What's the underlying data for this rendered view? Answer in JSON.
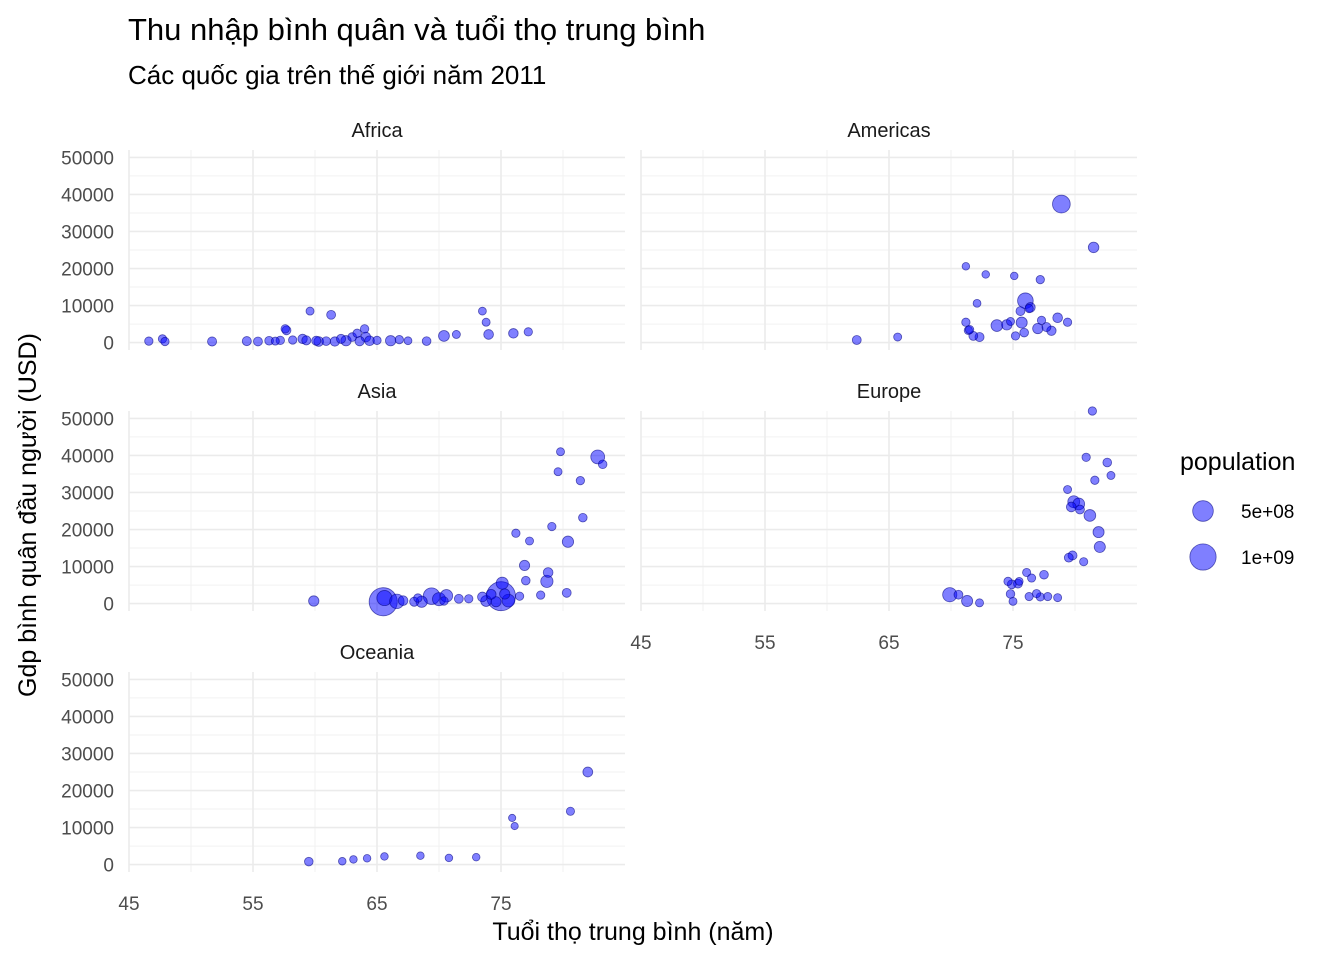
{
  "title": "Thu nhập bình quân và tuổi thọ trung bình",
  "subtitle": "Các quốc gia trên thế giới năm 2011",
  "chart_data": {
    "type": "scatter",
    "title": "Thu nhập bình quân và tuổi thọ trung bình",
    "subtitle": "Các quốc gia trên thế giới năm 2011",
    "xlabel": "Tuổi thọ trung bình (năm)",
    "ylabel": "Gdp bình quân đầu người (USD)",
    "xlim": [
      45,
      85
    ],
    "ylim": [
      -2000,
      52000
    ],
    "x_ticks": [
      45,
      55,
      65,
      75
    ],
    "y_ticks": [
      0,
      10000,
      20000,
      30000,
      40000,
      50000
    ],
    "x_tick_labels": [
      "45",
      "55",
      "65",
      "75"
    ],
    "y_tick_labels": [
      "0",
      "10000",
      "20000",
      "30000",
      "40000",
      "50000"
    ],
    "point_color": "#0000ff",
    "size_legend": {
      "title": "population",
      "entries": [
        {
          "label": "5e+08",
          "value": 500000000
        },
        {
          "label": "1e+09",
          "value": 1000000000
        }
      ]
    },
    "facets": [
      {
        "name": "Africa",
        "points": [
          [
            46.6,
            400,
            5000000.0
          ],
          [
            47.7,
            1000,
            5000000.0
          ],
          [
            47.9,
            300,
            5000000.0
          ],
          [
            51.7,
            300,
            12000000.0
          ],
          [
            54.5,
            400,
            12000000.0
          ],
          [
            55.4,
            300,
            10000000.0
          ],
          [
            56.3,
            500,
            8000000.0
          ],
          [
            56.8,
            400,
            3000000.0
          ],
          [
            57.2,
            600,
            6000000.0
          ],
          [
            57.6,
            3700,
            6000000.0
          ],
          [
            57.7,
            3300,
            10000000.0
          ],
          [
            58.2,
            700,
            5000000.0
          ],
          [
            59.0,
            1000,
            15000000.0
          ],
          [
            59.3,
            600,
            12000000.0
          ],
          [
            59.6,
            8500,
            3000000.0
          ],
          [
            60.1,
            500,
            12000000.0
          ],
          [
            60.3,
            300,
            20000000.0
          ],
          [
            60.9,
            400,
            8000000.0
          ],
          [
            61.3,
            7500,
            10000000.0
          ],
          [
            61.6,
            300,
            15000000.0
          ],
          [
            62.1,
            1000,
            12000000.0
          ],
          [
            62.5,
            500,
            30000000.0
          ],
          [
            63.0,
            1500,
            8000000.0
          ],
          [
            63.4,
            2500,
            6000000.0
          ],
          [
            63.6,
            400,
            15000000.0
          ],
          [
            64.0,
            3700,
            6000000.0
          ],
          [
            64.1,
            1500,
            20000000.0
          ],
          [
            64.4,
            500,
            20000000.0
          ],
          [
            65.0,
            600,
            5000000.0
          ],
          [
            66.1,
            500,
            30000000.0
          ],
          [
            66.8,
            800,
            5000000.0
          ],
          [
            67.5,
            500,
            2000000.0
          ],
          [
            69.0,
            400,
            8000000.0
          ],
          [
            70.4,
            1800,
            40000000.0
          ],
          [
            71.4,
            2200,
            3000000.0
          ],
          [
            73.5,
            8500,
            2000000.0
          ],
          [
            73.8,
            5500,
            3000000.0
          ],
          [
            74.0,
            2200,
            20000000.0
          ],
          [
            76.0,
            2500,
            18000000.0
          ],
          [
            77.2,
            2900,
            5000000.0
          ]
        ]
      },
      {
        "name": "Americas",
        "points": [
          [
            62.4,
            700,
            10000000.0
          ],
          [
            65.7,
            1500,
            3000000.0
          ],
          [
            71.2,
            20600,
            1000000.0
          ],
          [
            71.2,
            5500,
            5000000.0
          ],
          [
            71.4,
            3300,
            5000000.0
          ],
          [
            71.5,
            3500,
            5000000.0
          ],
          [
            71.8,
            1800,
            10000000.0
          ],
          [
            72.1,
            10600,
            2000000.0
          ],
          [
            72.3,
            1500,
            12000000.0
          ],
          [
            72.8,
            18400,
            1000000.0
          ],
          [
            73.7,
            4600,
            60000000.0
          ],
          [
            74.5,
            4800,
            30000000.0
          ],
          [
            74.8,
            5700,
            3000000.0
          ],
          [
            75.1,
            18000,
            1000000.0
          ],
          [
            75.2,
            1800,
            5000000.0
          ],
          [
            75.6,
            8500,
            10000000.0
          ],
          [
            75.7,
            5400,
            45000000.0
          ],
          [
            75.9,
            2700,
            8000000.0
          ],
          [
            76.0,
            11300,
            200000000.0
          ],
          [
            76.3,
            9200,
            5000000.0
          ],
          [
            76.4,
            9500,
            20000000.0
          ],
          [
            77.0,
            3800,
            30000000.0
          ],
          [
            77.2,
            17000,
            5000000.0
          ],
          [
            77.3,
            6000,
            5000000.0
          ],
          [
            77.7,
            4200,
            11000000.0
          ],
          [
            78.1,
            3200,
            15000000.0
          ],
          [
            78.6,
            6700,
            20000000.0
          ],
          [
            78.9,
            37400,
            310000000.0
          ],
          [
            79.4,
            5500,
            5000000.0
          ],
          [
            81.5,
            25700,
            34000000.0
          ]
        ]
      },
      {
        "name": "Asia",
        "points": [
          [
            59.9,
            700,
            30000000.0
          ],
          [
            65.5,
            500,
            1200000000.0
          ],
          [
            65.6,
            1500,
            180000000.0
          ],
          [
            66.6,
            600,
            150000000.0
          ],
          [
            67.1,
            800,
            20000000.0
          ],
          [
            68.0,
            500,
            12000000.0
          ],
          [
            68.3,
            1500,
            6000000.0
          ],
          [
            68.6,
            500,
            50000000.0
          ],
          [
            69.4,
            2000,
            250000000.0
          ],
          [
            70.0,
            1200,
            100000000.0
          ],
          [
            70.4,
            700,
            6000000.0
          ],
          [
            70.6,
            2100,
            80000000.0
          ],
          [
            71.6,
            1300,
            10000000.0
          ],
          [
            72.4,
            1300,
            5000000.0
          ],
          [
            73.5,
            1800,
            20000000.0
          ],
          [
            73.8,
            700,
            40000000.0
          ],
          [
            74.2,
            2500,
            24000000.0
          ],
          [
            74.6,
            500,
            27000000.0
          ],
          [
            75.0,
            2000,
            1300000000.0
          ],
          [
            75.1,
            5500,
            70000000.0
          ],
          [
            75.3,
            2600,
            30000000.0
          ],
          [
            75.6,
            800,
            90000000.0
          ],
          [
            76.2,
            19000,
            5000000.0
          ],
          [
            76.5,
            2000,
            5000000.0
          ],
          [
            76.9,
            10300,
            28000000.0
          ],
          [
            77.0,
            6200,
            7000000.0
          ],
          [
            77.3,
            16900,
            3000000.0
          ],
          [
            78.2,
            2300,
            5000000.0
          ],
          [
            78.7,
            6000,
            75000000.0
          ],
          [
            78.8,
            8400,
            20000000.0
          ],
          [
            79.1,
            20800,
            5000000.0
          ],
          [
            79.6,
            35600,
            3000000.0
          ],
          [
            79.8,
            41000,
            3000000.0
          ],
          [
            80.3,
            2900,
            10000000.0
          ],
          [
            80.4,
            16700,
            50000000.0
          ],
          [
            81.4,
            33200,
            5000000.0
          ],
          [
            81.6,
            23200,
            7000000.0
          ],
          [
            82.8,
            39600,
            127000000.0
          ],
          [
            83.2,
            37600,
            7000000.0
          ]
        ]
      },
      {
        "name": "Europe",
        "points": [
          [
            69.9,
            2400,
            140000000.0
          ],
          [
            70.6,
            2400,
            10000000.0
          ],
          [
            71.3,
            700,
            45000000.0
          ],
          [
            72.3,
            200,
            3000000.0
          ],
          [
            74.6,
            6000,
            5000000.0
          ],
          [
            74.8,
            2600,
            7000000.0
          ],
          [
            74.9,
            5200,
            9000000.0
          ],
          [
            75.0,
            600,
            3000000.0
          ],
          [
            75.4,
            5400,
            10000000.0
          ],
          [
            75.5,
            6000,
            2000000.0
          ],
          [
            76.1,
            8400,
            4000000.0
          ],
          [
            76.3,
            1900,
            4000000.0
          ],
          [
            76.5,
            6900,
            4000000.0
          ],
          [
            76.9,
            2700,
            4000000.0
          ],
          [
            77.2,
            1800,
            4700000.0
          ],
          [
            77.5,
            7800,
            8000000.0
          ],
          [
            77.8,
            1900,
            4000000.0
          ],
          [
            78.6,
            1600,
            3000000.0
          ],
          [
            79.4,
            30800,
            3000000.0
          ],
          [
            79.5,
            12400,
            10000000.0
          ],
          [
            79.7,
            26100,
            20000000.0
          ],
          [
            79.8,
            13000,
            11000000.0
          ],
          [
            79.9,
            27500,
            65000000.0
          ],
          [
            80.3,
            26900,
            63000000.0
          ],
          [
            80.4,
            25400,
            10000000.0
          ],
          [
            80.7,
            11300,
            4000000.0
          ],
          [
            80.9,
            39500,
            5000000.0
          ],
          [
            81.2,
            23800,
            60000000.0
          ],
          [
            81.4,
            52000,
            5000000.0
          ],
          [
            81.6,
            33300,
            5000000.0
          ],
          [
            81.9,
            19300,
            45000000.0
          ],
          [
            82.0,
            15300,
            46000000.0
          ],
          [
            82.6,
            38100,
            8000000.0
          ],
          [
            82.9,
            34600,
            3000000.0
          ]
        ]
      },
      {
        "name": "Oceania",
        "points": [
          [
            59.5,
            800,
            7000000.0
          ],
          [
            62.2,
            900,
            1000000.0
          ],
          [
            63.1,
            1400,
            1000000.0
          ],
          [
            64.2,
            1700,
            1000000.0
          ],
          [
            65.6,
            2200,
            1000000.0
          ],
          [
            68.5,
            2400,
            1000000.0
          ],
          [
            70.8,
            1800,
            1000000.0
          ],
          [
            73.0,
            2000,
            1000000.0
          ],
          [
            75.9,
            12600,
            200000.0
          ],
          [
            76.1,
            10400,
            200000.0
          ],
          [
            80.6,
            14400,
            4000000.0
          ],
          [
            82.0,
            25000,
            22000000.0
          ]
        ]
      }
    ]
  }
}
